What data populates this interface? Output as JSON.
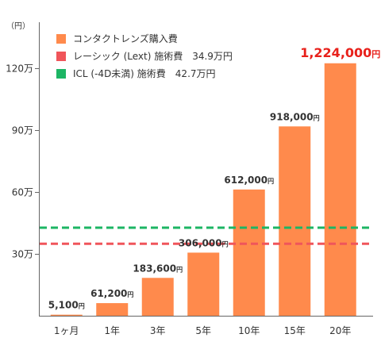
{
  "chart_data": {
    "type": "bar",
    "unit_label": "（円）",
    "categories": [
      "1ヶ月",
      "1年",
      "3年",
      "5年",
      "10年",
      "15年",
      "20年"
    ],
    "series": [
      {
        "name": "コンタクトレンズ購入費",
        "values": [
          5100,
          61200,
          183600,
          306000,
          612000,
          918000,
          1224000
        ],
        "labels": [
          {
            "num": "5,100",
            "unit": "円"
          },
          {
            "num": "61,200",
            "unit": "円"
          },
          {
            "num": "183,600",
            "unit": "円"
          },
          {
            "num": "306,000",
            "unit": "円"
          },
          {
            "num": "612,000",
            "unit": "円"
          },
          {
            "num": "918,000",
            "unit": "円"
          },
          {
            "num": "1,224,000",
            "unit": "円"
          }
        ],
        "color": "#ff8a4c",
        "highlight_color": "#e8211b"
      }
    ],
    "reference_lines": [
      {
        "name": "レーシック (Lext) 施術費　34.9万円",
        "value": 349000,
        "color": "#f0555a",
        "style": "dashed"
      },
      {
        "name": "ICL (-4D未満) 施術費　42.7万円",
        "value": 427000,
        "color": "#1db564",
        "style": "dashed"
      }
    ],
    "y_ticks": [
      {
        "value": 300000,
        "label": "30万"
      },
      {
        "value": 600000,
        "label": "60万"
      },
      {
        "value": 900000,
        "label": "90万"
      },
      {
        "value": 1200000,
        "label": "120万"
      }
    ],
    "ylim": [
      0,
      1500000
    ],
    "legend_position": "top-left",
    "grid": false
  }
}
